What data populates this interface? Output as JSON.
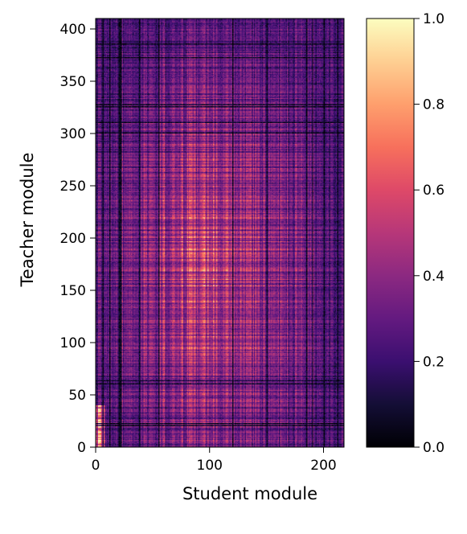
{
  "chart_data": {
    "type": "heatmap",
    "xlabel": "Student module",
    "ylabel": "Teacher module",
    "xlim": [
      0,
      218
    ],
    "ylim": [
      0,
      410
    ],
    "xticks": [
      0,
      100,
      200
    ],
    "yticks": [
      0,
      50,
      100,
      150,
      200,
      250,
      300,
      350,
      400
    ],
    "colormap": "magma",
    "colorbar": {
      "vmin": 0.0,
      "vmax": 1.0,
      "ticks": [
        "0.0",
        "0.2",
        "0.4",
        "0.6",
        "0.8",
        "1.0"
      ]
    },
    "grid": false,
    "data_summary": {
      "n_student_modules": 218,
      "n_teacher_modules": 410,
      "typical_value_center": 0.75,
      "typical_value_edges": 0.35,
      "low_value_student_columns": [
        6,
        12,
        20,
        21,
        22,
        38,
        55,
        120,
        150,
        185,
        190,
        200,
        212
      ],
      "low_value_teacher_rows": [
        20,
        22,
        60,
        63,
        300,
        310,
        325,
        327,
        372,
        385
      ]
    }
  }
}
